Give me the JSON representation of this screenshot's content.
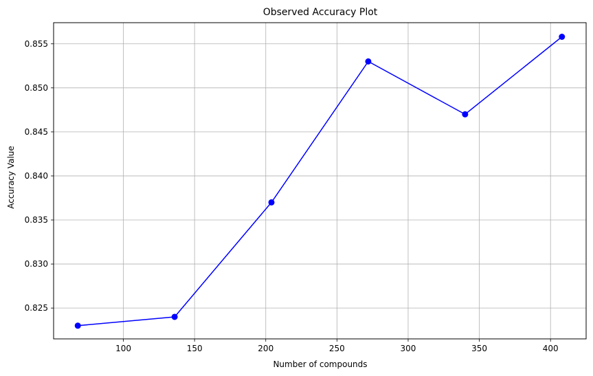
{
  "chart_data": {
    "type": "line",
    "title": "Observed Accuracy Plot",
    "xlabel": "Number of compounds",
    "ylabel": "Accuracy Value",
    "xlim": [
      51,
      425
    ],
    "ylim": [
      0.8215,
      0.8574
    ],
    "x_ticks": [
      100,
      150,
      200,
      250,
      300,
      350,
      400
    ],
    "y_ticks": [
      0.825,
      0.83,
      0.835,
      0.84,
      0.845,
      0.85,
      0.855
    ],
    "x_tick_labels": [
      "100",
      "150",
      "200",
      "250",
      "300",
      "350",
      "400"
    ],
    "y_tick_labels": [
      "0.825",
      "0.830",
      "0.835",
      "0.840",
      "0.845",
      "0.850",
      "0.855"
    ],
    "grid": true,
    "series": [
      {
        "x": [
          68,
          136,
          204,
          272,
          340,
          408
        ],
        "values": [
          0.823,
          0.824,
          0.837,
          0.853,
          0.847,
          0.8558
        ],
        "color": "#0000ff",
        "marker": "circle"
      }
    ]
  }
}
